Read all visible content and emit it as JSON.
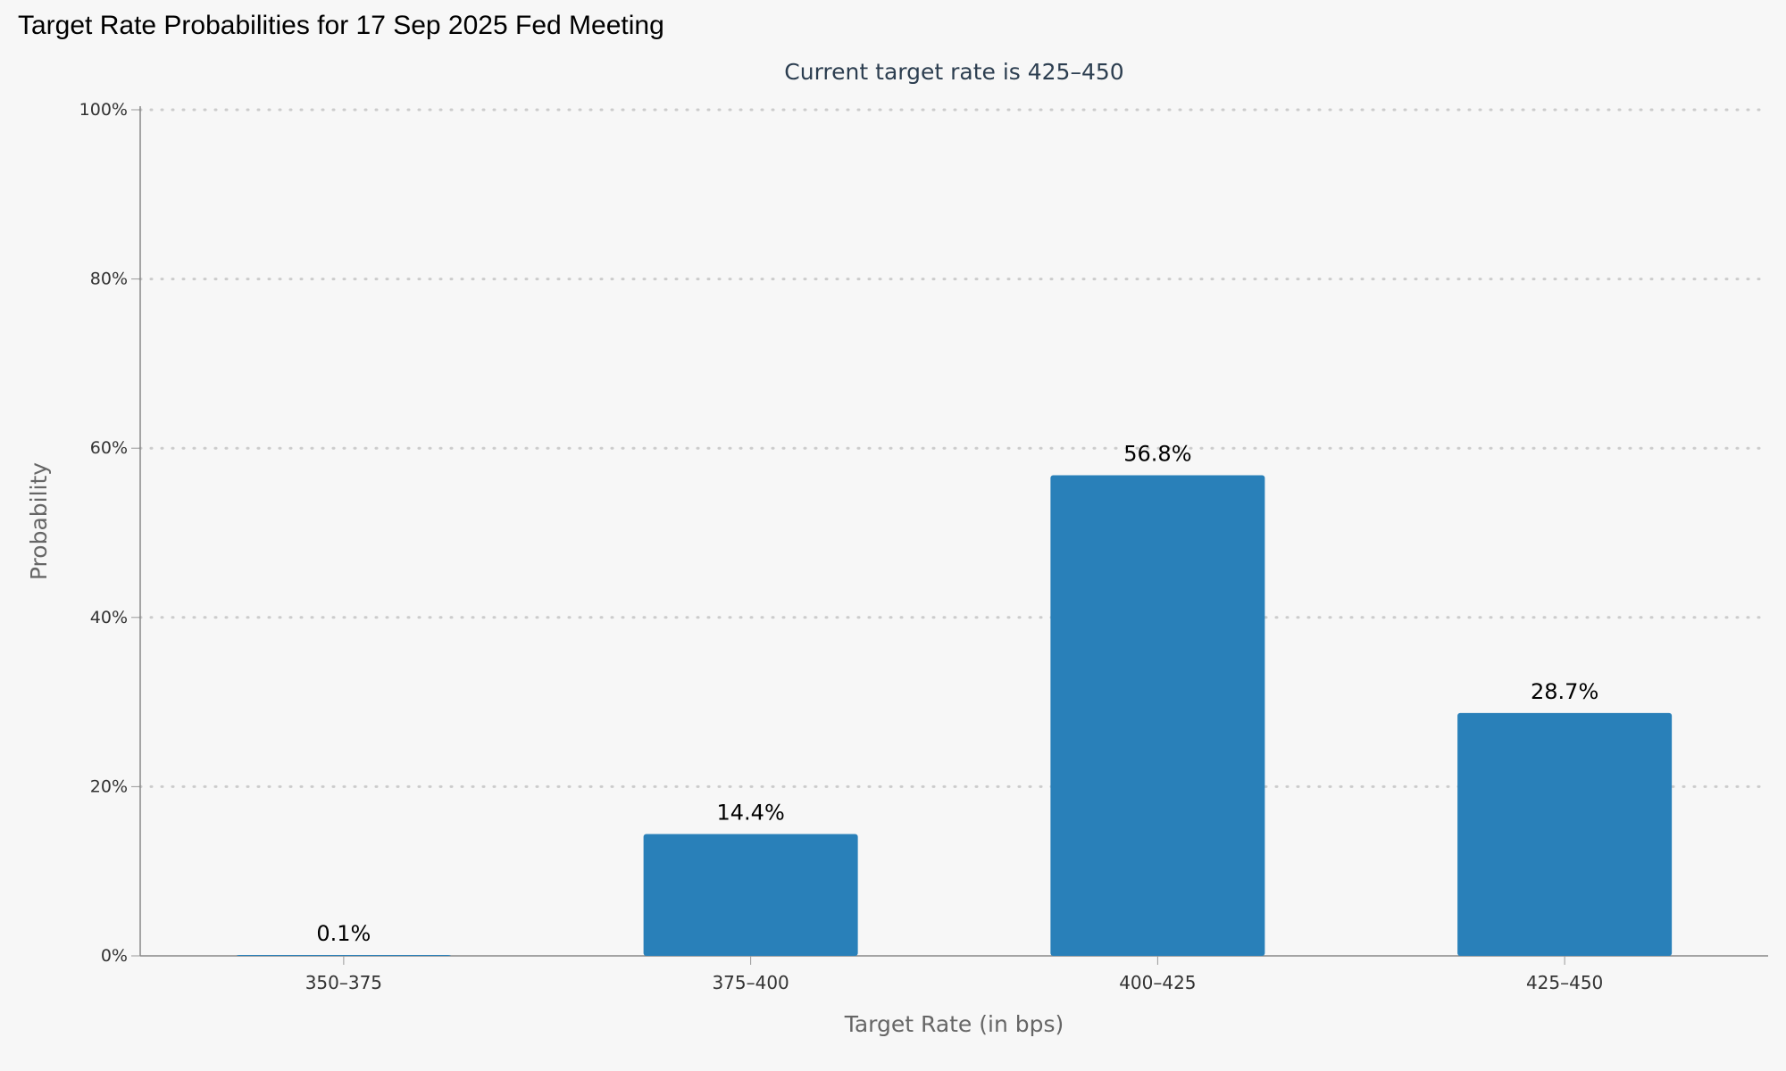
{
  "page": {
    "title": "Target Rate Probabilities for 17 Sep 2025 Fed Meeting"
  },
  "chart_data": {
    "type": "bar",
    "title": "Target Rate Probabilities for 17 Sep 2025 Fed Meeting",
    "subtitle": "Current target rate is 425–450",
    "xlabel": "Target Rate (in bps)",
    "ylabel": "Probability",
    "categories": [
      "350–375",
      "375–400",
      "400–425",
      "425–450"
    ],
    "values": [
      0.1,
      14.4,
      56.8,
      28.7
    ],
    "data_labels": [
      "0.1%",
      "14.4%",
      "56.8%",
      "28.7%"
    ],
    "ylim": [
      0,
      100
    ],
    "yticks": [
      0,
      20,
      40,
      60,
      80,
      100
    ],
    "ytick_labels": [
      "0%",
      "20%",
      "40%",
      "60%",
      "80%",
      "100%"
    ],
    "grid": "horizontal dotted",
    "legend": "none",
    "colors": {
      "bar": "#2980b9",
      "subtitle": "#2c3e50",
      "axis_text": "#333333",
      "axis_title": "#666666",
      "grid": "#cccccc",
      "background": "#f7f7f7"
    }
  }
}
